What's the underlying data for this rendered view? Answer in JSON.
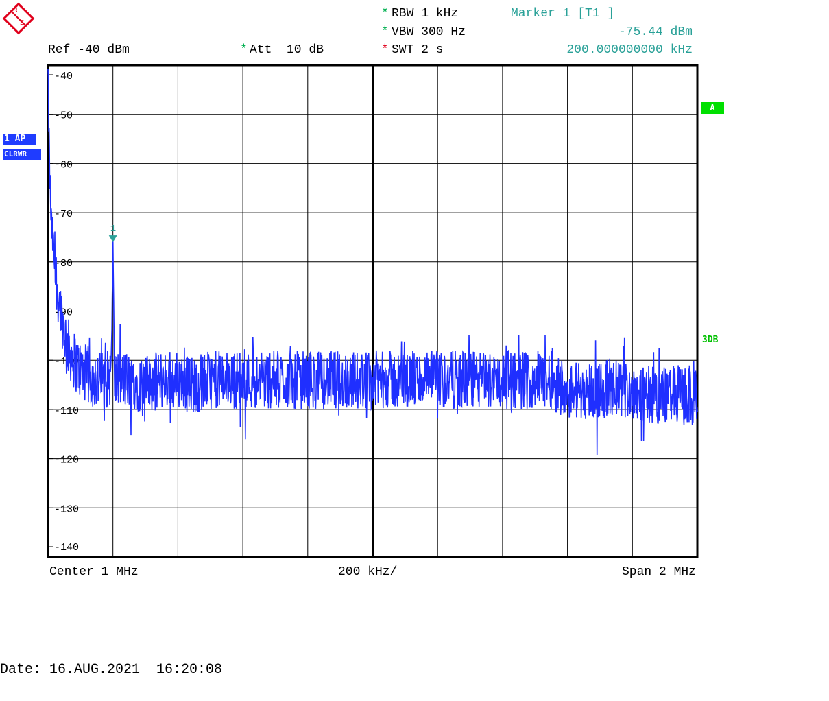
{
  "header": {
    "rbw": "RBW 1 kHz",
    "vbw": "VBW 300 Hz",
    "swt": "SWT 2 s",
    "ref": "Ref -40 dBm",
    "att": "Att  10 dB",
    "marker_title": "Marker 1 [T1 ]",
    "marker_level": "-75.44 dBm",
    "marker_freq": "200.000000000 kHz",
    "star": "*"
  },
  "trace_badge": {
    "line1": "1 AP",
    "line2": "CLRWR"
  },
  "side": {
    "a_label": "A",
    "db_label": "3DB"
  },
  "footer": {
    "center": "Center 1 MHz",
    "per_div": "200 kHz/",
    "span": "Span 2 MHz",
    "date": "Date: 16.AUG.2021  16:20:08"
  },
  "colors": {
    "trace": "#1f2fff",
    "marker": "#2aa198",
    "grid": "#000000",
    "accent": "#00e000"
  },
  "chart_data": {
    "type": "line",
    "title": "",
    "xlabel": "",
    "ylabel": "",
    "x_unit": "MHz",
    "y_unit": "dBm",
    "xlim": [
      0,
      2
    ],
    "ylim": [
      -140,
      -40
    ],
    "y_tick_labels": [
      "-40",
      "-50",
      "-60",
      "-70",
      "-80",
      "-90",
      "-100",
      "-110",
      "-120",
      "-130",
      "-140"
    ],
    "grid": true,
    "marker": {
      "label": "1",
      "x": 0.2,
      "y": -75.44
    },
    "series": [
      {
        "x": [
          0,
          0.005,
          0.01,
          0.02,
          0.03,
          0.04,
          0.05,
          0.06,
          0.08,
          0.1,
          0.12,
          0.15,
          0.18,
          0.195,
          0.2,
          0.205,
          0.22,
          0.25,
          0.3,
          0.35,
          0.4,
          0.45,
          0.5,
          0.55,
          0.6,
          0.65,
          0.7,
          0.75,
          0.8,
          0.85,
          0.9,
          0.95,
          1.0,
          1.05,
          1.1,
          1.15,
          1.2,
          1.25,
          1.3,
          1.35,
          1.4,
          1.45,
          1.5,
          1.55,
          1.6,
          1.65,
          1.7,
          1.75,
          1.8,
          1.85,
          1.9,
          1.95,
          2.0
        ],
        "y": [
          -42,
          -62,
          -72,
          -80,
          -86,
          -90,
          -94,
          -97,
          -100,
          -102,
          -103,
          -104,
          -104,
          -103,
          -75.44,
          -104,
          -104,
          -104,
          -105,
          -104,
          -104,
          -105,
          -104,
          -104,
          -104,
          -104,
          -104,
          -104,
          -104,
          -104,
          -104,
          -104,
          -104,
          -104,
          -104,
          -104,
          -104,
          -104,
          -104,
          -104,
          -104,
          -104,
          -104,
          -104,
          -106,
          -106,
          -106,
          -106,
          -106,
          -107,
          -107,
          -107,
          -108
        ]
      }
    ]
  }
}
